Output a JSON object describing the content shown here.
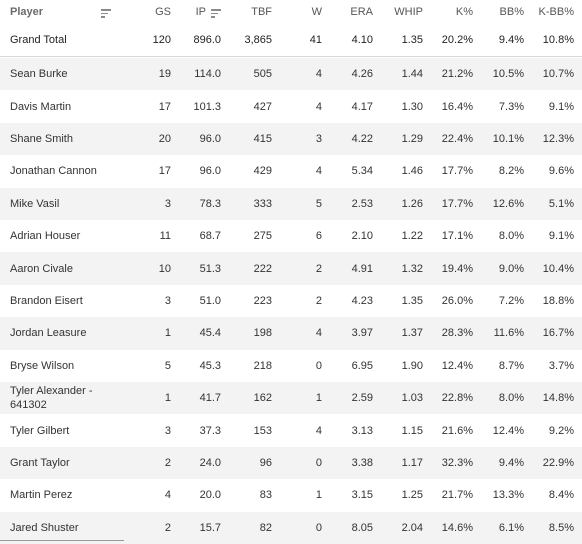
{
  "columns": {
    "player": "Player",
    "gs": "GS",
    "ip": "IP",
    "tbf": "TBF",
    "w": "W",
    "era": "ERA",
    "whip": "WHIP",
    "k_pct": "K%",
    "bb_pct": "BB%",
    "kbb_pct": "K-BB%"
  },
  "icons": {
    "player_sort": "sort-lines-icon",
    "ip_sort": "sort-descending-icon"
  },
  "total": {
    "label": "Grand Total",
    "gs": "120",
    "ip": "896.0",
    "tbf": "3,865",
    "w": "41",
    "era": "4.10",
    "whip": "1.35",
    "k_pct": "20.2%",
    "bb_pct": "9.4%",
    "kbb_pct": "10.8%"
  },
  "rows": [
    {
      "player": "Sean Burke",
      "gs": "19",
      "ip": "114.0",
      "tbf": "505",
      "w": "4",
      "era": "4.26",
      "whip": "1.44",
      "k_pct": "21.2%",
      "bb_pct": "10.5%",
      "kbb_pct": "10.7%"
    },
    {
      "player": "Davis Martin",
      "gs": "17",
      "ip": "101.3",
      "tbf": "427",
      "w": "4",
      "era": "4.17",
      "whip": "1.30",
      "k_pct": "16.4%",
      "bb_pct": "7.3%",
      "kbb_pct": "9.1%"
    },
    {
      "player": "Shane Smith",
      "gs": "20",
      "ip": "96.0",
      "tbf": "415",
      "w": "3",
      "era": "4.22",
      "whip": "1.29",
      "k_pct": "22.4%",
      "bb_pct": "10.1%",
      "kbb_pct": "12.3%"
    },
    {
      "player": "Jonathan Cannon",
      "gs": "17",
      "ip": "96.0",
      "tbf": "429",
      "w": "4",
      "era": "5.34",
      "whip": "1.46",
      "k_pct": "17.7%",
      "bb_pct": "8.2%",
      "kbb_pct": "9.6%"
    },
    {
      "player": "Mike Vasil",
      "gs": "3",
      "ip": "78.3",
      "tbf": "333",
      "w": "5",
      "era": "2.53",
      "whip": "1.26",
      "k_pct": "17.7%",
      "bb_pct": "12.6%",
      "kbb_pct": "5.1%"
    },
    {
      "player": "Adrian Houser",
      "gs": "11",
      "ip": "68.7",
      "tbf": "275",
      "w": "6",
      "era": "2.10",
      "whip": "1.22",
      "k_pct": "17.1%",
      "bb_pct": "8.0%",
      "kbb_pct": "9.1%"
    },
    {
      "player": "Aaron Civale",
      "gs": "10",
      "ip": "51.3",
      "tbf": "222",
      "w": "2",
      "era": "4.91",
      "whip": "1.32",
      "k_pct": "19.4%",
      "bb_pct": "9.0%",
      "kbb_pct": "10.4%"
    },
    {
      "player": "Brandon Eisert",
      "gs": "3",
      "ip": "51.0",
      "tbf": "223",
      "w": "2",
      "era": "4.23",
      "whip": "1.35",
      "k_pct": "26.0%",
      "bb_pct": "7.2%",
      "kbb_pct": "18.8%"
    },
    {
      "player": "Jordan Leasure",
      "gs": "1",
      "ip": "45.4",
      "tbf": "198",
      "w": "4",
      "era": "3.97",
      "whip": "1.37",
      "k_pct": "28.3%",
      "bb_pct": "11.6%",
      "kbb_pct": "16.7%"
    },
    {
      "player": "Bryse Wilson",
      "gs": "5",
      "ip": "45.3",
      "tbf": "218",
      "w": "0",
      "era": "6.95",
      "whip": "1.90",
      "k_pct": "12.4%",
      "bb_pct": "8.7%",
      "kbb_pct": "3.7%"
    },
    {
      "player": "Tyler Alexander - 641302",
      "gs": "1",
      "ip": "41.7",
      "tbf": "162",
      "w": "1",
      "era": "2.59",
      "whip": "1.03",
      "k_pct": "22.8%",
      "bb_pct": "8.0%",
      "kbb_pct": "14.8%"
    },
    {
      "player": "Tyler Gilbert",
      "gs": "3",
      "ip": "37.3",
      "tbf": "153",
      "w": "4",
      "era": "3.13",
      "whip": "1.15",
      "k_pct": "21.6%",
      "bb_pct": "12.4%",
      "kbb_pct": "9.2%"
    },
    {
      "player": "Grant Taylor",
      "gs": "2",
      "ip": "24.0",
      "tbf": "96",
      "w": "0",
      "era": "3.38",
      "whip": "1.17",
      "k_pct": "32.3%",
      "bb_pct": "9.4%",
      "kbb_pct": "22.9%"
    },
    {
      "player": "Martin Perez",
      "gs": "4",
      "ip": "20.0",
      "tbf": "83",
      "w": "1",
      "era": "3.15",
      "whip": "1.25",
      "k_pct": "21.7%",
      "bb_pct": "13.3%",
      "kbb_pct": "8.4%"
    },
    {
      "player": "Jared Shuster",
      "gs": "2",
      "ip": "15.7",
      "tbf": "82",
      "w": "0",
      "era": "8.05",
      "whip": "2.04",
      "k_pct": "14.6%",
      "bb_pct": "6.1%",
      "kbb_pct": "8.5%"
    }
  ]
}
